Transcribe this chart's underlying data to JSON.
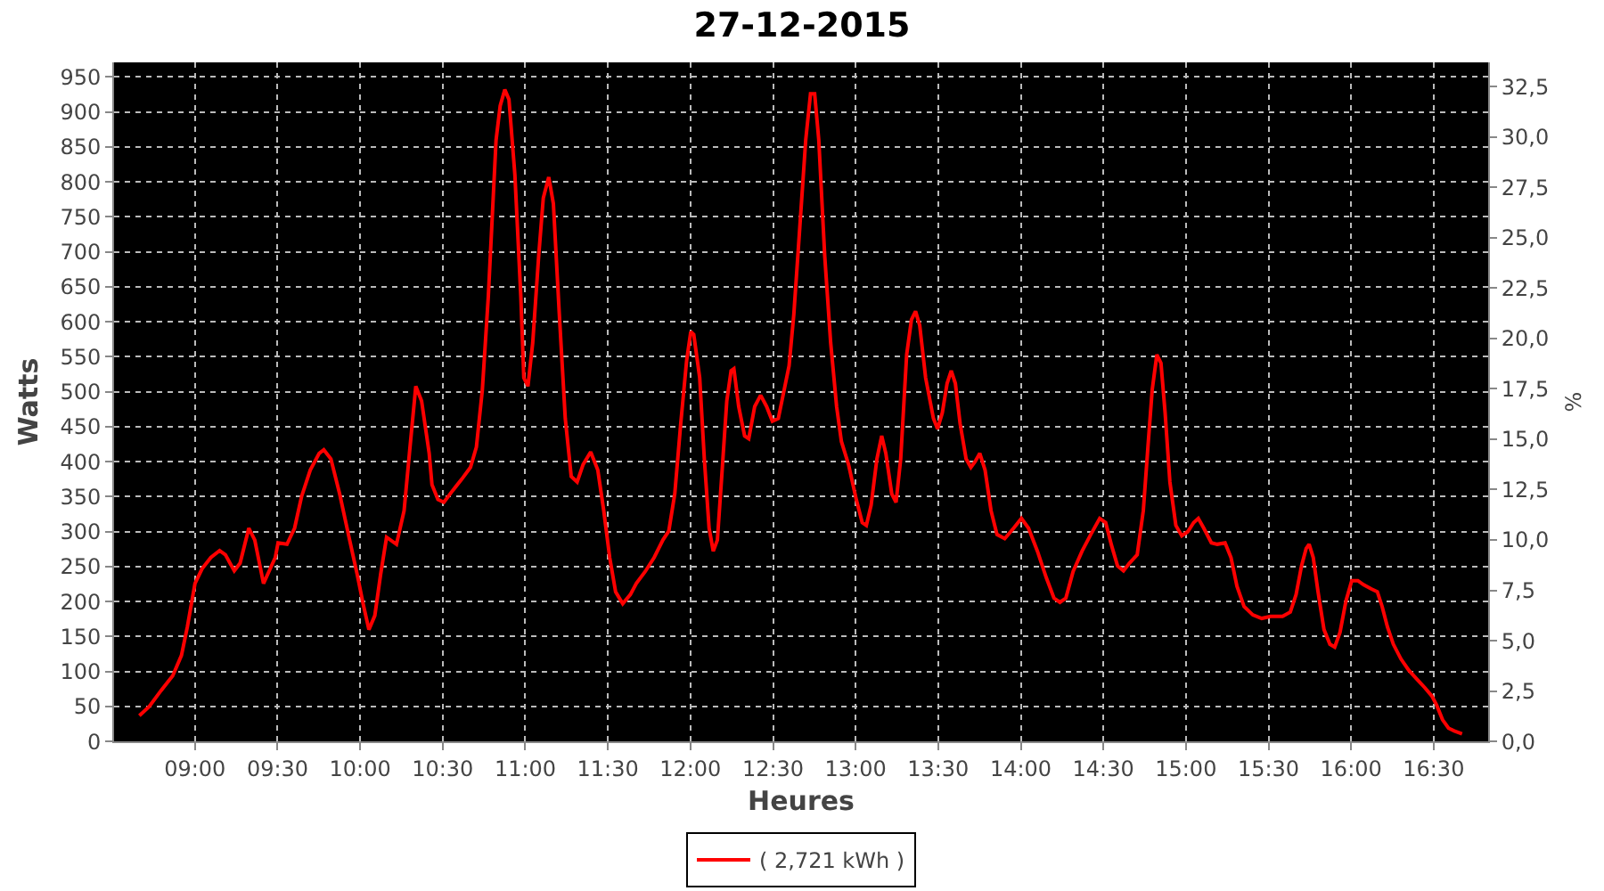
{
  "chart_data": {
    "type": "line",
    "title": "27-12-2015",
    "xlabel": "Heures",
    "ylabel": "Watts",
    "y2label": "%",
    "x": [
      8.663,
      8.723,
      8.795,
      8.865,
      8.918,
      8.954,
      9.0,
      9.043,
      9.096,
      9.149,
      9.184,
      9.238,
      9.273,
      9.326,
      9.362,
      9.415,
      9.486,
      9.503,
      9.557,
      9.603,
      9.645,
      9.698,
      9.752,
      9.78,
      9.823,
      9.876,
      9.929,
      9.982,
      10.018,
      10.053,
      10.089,
      10.124,
      10.16,
      10.22,
      10.266,
      10.302,
      10.337,
      10.372,
      10.418,
      10.435,
      10.471,
      10.507,
      10.561,
      10.615,
      10.668,
      10.704,
      10.74,
      10.776,
      10.823,
      10.848,
      10.876,
      10.901,
      10.937,
      10.973,
      10.991,
      11.016,
      11.045,
      11.081,
      11.109,
      11.142,
      11.17,
      11.206,
      11.242,
      11.278,
      11.314,
      11.35,
      11.396,
      11.439,
      11.475,
      11.511,
      11.547,
      11.59,
      11.636,
      11.672,
      11.726,
      11.78,
      11.833,
      11.869,
      11.905,
      11.941,
      11.977,
      12.002,
      12.02,
      12.056,
      12.084,
      12.113,
      12.138,
      12.163,
      12.192,
      12.22,
      12.246,
      12.263,
      12.292,
      12.328,
      12.353,
      12.389,
      12.425,
      12.461,
      12.496,
      12.532,
      12.597,
      12.626,
      12.662,
      12.698,
      12.727,
      12.752,
      12.777,
      12.813,
      12.849,
      12.885,
      12.914,
      12.957,
      13.004,
      13.04,
      13.065,
      13.094,
      13.129,
      13.158,
      13.183,
      13.219,
      13.245,
      13.273,
      13.309,
      13.338,
      13.363,
      13.388,
      13.424,
      13.471,
      13.496,
      13.525,
      13.554,
      13.579,
      13.604,
      13.633,
      13.669,
      13.698,
      13.723,
      13.752,
      13.784,
      13.82,
      13.856,
      13.903,
      13.957,
      14.004,
      14.047,
      14.101,
      14.155,
      14.201,
      14.237,
      14.273,
      14.317,
      14.371,
      14.424,
      14.478,
      14.514,
      14.55,
      14.586,
      14.622,
      14.658,
      14.705,
      14.742,
      14.77,
      14.796,
      14.824,
      14.849,
      14.874,
      14.903,
      14.939,
      14.975,
      15.011,
      15.047,
      15.075,
      15.108,
      15.154,
      15.19,
      15.237,
      15.273,
      15.309,
      15.352,
      15.405,
      15.459,
      15.513,
      15.585,
      15.632,
      15.667,
      15.7,
      15.728,
      15.746,
      15.771,
      15.8,
      15.836,
      15.872,
      15.901,
      15.933,
      15.969,
      16.004,
      16.041,
      16.076,
      16.123,
      16.159,
      16.188,
      16.22,
      16.256,
      16.302,
      16.349,
      16.399,
      16.446,
      16.489,
      16.518,
      16.554,
      16.59,
      16.625,
      16.672
    ],
    "series": [
      {
        "name": "( 2,721 kWh )",
        "color": "#ff0000",
        "values": [
          37,
          50,
          73,
          94,
          123,
          164,
          226,
          247,
          263,
          273,
          267,
          244,
          255,
          305,
          288,
          226,
          263,
          284,
          282,
          305,
          350,
          388,
          412,
          417,
          404,
          354,
          296,
          239,
          197,
          160,
          180,
          239,
          292,
          282,
          330,
          421,
          508,
          487,
          412,
          367,
          346,
          342,
          359,
          375,
          392,
          421,
          503,
          636,
          860,
          909,
          932,
          918,
          810,
          636,
          520,
          508,
          570,
          694,
          777,
          807,
          769,
          611,
          462,
          379,
          371,
          396,
          414,
          388,
          330,
          263,
          214,
          197,
          210,
          226,
          243,
          263,
          288,
          301,
          354,
          454,
          545,
          586,
          582,
          520,
          404,
          305,
          272,
          288,
          388,
          487,
          530,
          533,
          479,
          437,
          433,
          479,
          495,
          479,
          458,
          462,
          537,
          611,
          735,
          860,
          926,
          926,
          860,
          694,
          570,
          479,
          429,
          396,
          346,
          313,
          309,
          338,
          404,
          437,
          412,
          354,
          342,
          404,
          553,
          603,
          615,
          595,
          520,
          462,
          447,
          470,
          512,
          530,
          512,
          454,
          404,
          392,
          400,
          412,
          388,
          330,
          296,
          290,
          305,
          319,
          305,
          272,
          234,
          205,
          199,
          205,
          243,
          272,
          296,
          319,
          313,
          280,
          251,
          244,
          255,
          267,
          330,
          421,
          503,
          553,
          541,
          470,
          371,
          309,
          294,
          300,
          313,
          319,
          305,
          284,
          282,
          284,
          263,
          222,
          193,
          181,
          176,
          179,
          179,
          185,
          210,
          251,
          276,
          282,
          263,
          214,
          160,
          139,
          135,
          156,
          201,
          230,
          230,
          224,
          218,
          214,
          193,
          164,
          139,
          118,
          102,
          89,
          77,
          65,
          52,
          31,
          19,
          15,
          11
        ]
      }
    ],
    "xlim": [
      8.51,
      16.83
    ],
    "xticks": [
      {
        "value": 9,
        "label": "09:00"
      },
      {
        "value": 9.5,
        "label": "09:30"
      },
      {
        "value": 10,
        "label": "10:00"
      },
      {
        "value": 10.5,
        "label": "10:30"
      },
      {
        "value": 11,
        "label": "11:00"
      },
      {
        "value": 11.5,
        "label": "11:30"
      },
      {
        "value": 12,
        "label": "12:00"
      },
      {
        "value": 12.5,
        "label": "12:30"
      },
      {
        "value": 13,
        "label": "13:00"
      },
      {
        "value": 13.5,
        "label": "13:30"
      },
      {
        "value": 14,
        "label": "14:00"
      },
      {
        "value": 14.5,
        "label": "14:30"
      },
      {
        "value": 15,
        "label": "15:00"
      },
      {
        "value": 15.5,
        "label": "15:30"
      },
      {
        "value": 16,
        "label": "16:00"
      },
      {
        "value": 16.5,
        "label": "16:30"
      }
    ],
    "ylim": [
      0,
      971
    ],
    "yticks": [
      0,
      50,
      100,
      150,
      200,
      250,
      300,
      350,
      400,
      450,
      500,
      550,
      600,
      650,
      700,
      750,
      800,
      850,
      900,
      950
    ],
    "y2lim": [
      0,
      33.7
    ],
    "y2ticks": [
      {
        "value": 0,
        "label": "0,0"
      },
      {
        "value": 2.5,
        "label": "2,5"
      },
      {
        "value": 5,
        "label": "5,0"
      },
      {
        "value": 7.5,
        "label": "7,5"
      },
      {
        "value": 10,
        "label": "10,0"
      },
      {
        "value": 12.5,
        "label": "12,5"
      },
      {
        "value": 15,
        "label": "15,0"
      },
      {
        "value": 17.5,
        "label": "17,5"
      },
      {
        "value": 20,
        "label": "20,0"
      },
      {
        "value": 22.5,
        "label": "22,5"
      },
      {
        "value": 25,
        "label": "25,0"
      },
      {
        "value": 27.5,
        "label": "27,5"
      },
      {
        "value": 30,
        "label": "30,0"
      },
      {
        "value": 32.5,
        "label": "32,5"
      }
    ],
    "grid": true,
    "legend": "bottom",
    "marker": "none",
    "line_style": "solid"
  }
}
